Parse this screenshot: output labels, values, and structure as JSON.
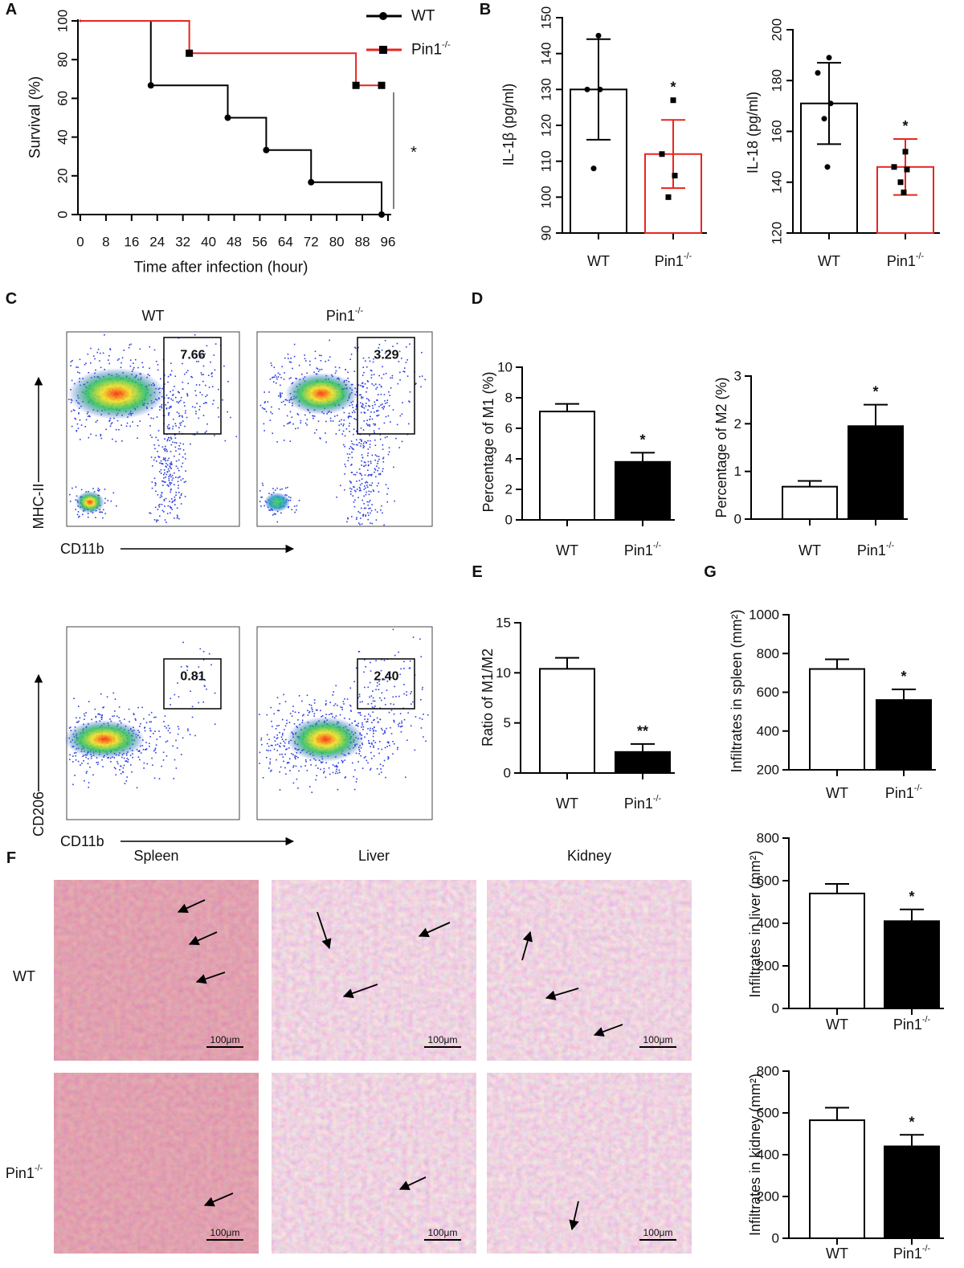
{
  "panel_labels": [
    "A",
    "B",
    "C",
    "D",
    "E",
    "F",
    "G"
  ],
  "chart_data": [
    {
      "type": "line",
      "xlabel": "Time after infection (hour)",
      "ylabel": "Survival (%)",
      "xlim": [
        0,
        96
      ],
      "xticks": [
        0,
        8,
        16,
        24,
        32,
        40,
        48,
        56,
        64,
        72,
        80,
        88,
        96
      ],
      "ylim": [
        0,
        100
      ],
      "yticks": [
        0,
        20,
        40,
        60,
        80,
        100
      ],
      "grid": false,
      "legend": "upper right",
      "series": [
        {
          "name": "WT",
          "color": "#000000",
          "marker": "circle",
          "x": [
            0,
            22,
            46,
            58,
            72,
            94
          ],
          "values": [
            100,
            66.7,
            50,
            33.3,
            16.7,
            0
          ]
        },
        {
          "name": "Pin1-/-",
          "color": "#e8251f",
          "marker": "square",
          "x": [
            0,
            34,
            86,
            94
          ],
          "values": [
            100,
            83.3,
            66.7,
            66.7
          ]
        }
      ],
      "significance": "*"
    },
    {
      "type": "bar",
      "ylabel": "IL-1β (pg/ml)",
      "categories": [
        "WT",
        "Pin1-/-"
      ],
      "values": [
        130,
        112
      ],
      "errors": [
        14,
        9.5
      ],
      "error_direction": "both",
      "fill": [
        "#ffffff",
        "#ffffff"
      ],
      "stroke": [
        "#000000",
        "#e8251f"
      ],
      "points": [
        [
          145,
          130,
          130,
          108
        ],
        [
          127,
          112,
          106,
          100
        ]
      ],
      "point_markers": [
        "circle",
        "square"
      ],
      "ylim": [
        90,
        150
      ],
      "yticks": [
        90,
        100,
        110,
        120,
        130,
        140,
        150
      ],
      "significance": "*"
    },
    {
      "type": "bar",
      "ylabel": "IL-18 (pg/ml)",
      "categories": [
        "WT",
        "Pin1-/-"
      ],
      "values": [
        171,
        146
      ],
      "errors": [
        16,
        11
      ],
      "error_direction": "both",
      "fill": [
        "#ffffff",
        "#ffffff"
      ],
      "stroke": [
        "#000000",
        "#e8251f"
      ],
      "points": [
        [
          189,
          183,
          171,
          165,
          146
        ],
        [
          152,
          146,
          145,
          140,
          136
        ]
      ],
      "point_markers": [
        "circle",
        "square"
      ],
      "ylim": [
        120,
        200
      ],
      "yticks": [
        120,
        140,
        160,
        180,
        200
      ],
      "significance": "*"
    },
    {
      "type": "bar",
      "ylabel": "Percentage of M1 (%)",
      "categories": [
        "WT",
        "Pin1-/-"
      ],
      "values": [
        7.1,
        3.8
      ],
      "errors": [
        0.5,
        0.6
      ],
      "error_direction": "up",
      "fill": [
        "#ffffff",
        "#000000"
      ],
      "stroke": [
        "#000000",
        "#000000"
      ],
      "ylim": [
        0,
        10
      ],
      "yticks": [
        0,
        2,
        4,
        6,
        8,
        10
      ],
      "significance": "*"
    },
    {
      "type": "bar",
      "ylabel": "Percentage of M2 (%)",
      "categories": [
        "WT",
        "Pin1-/-"
      ],
      "values": [
        0.68,
        1.95
      ],
      "errors": [
        0.12,
        0.45
      ],
      "error_direction": "up",
      "fill": [
        "#ffffff",
        "#000000"
      ],
      "stroke": [
        "#000000",
        "#000000"
      ],
      "ylim": [
        0,
        3
      ],
      "yticks": [
        0,
        1,
        2,
        3
      ],
      "significance": "*"
    },
    {
      "type": "bar",
      "ylabel": "Ratio of M1/M2",
      "categories": [
        "WT",
        "Pin1-/-"
      ],
      "values": [
        10.4,
        2.1
      ],
      "errors": [
        1.1,
        0.8
      ],
      "error_direction": "up",
      "fill": [
        "#ffffff",
        "#000000"
      ],
      "stroke": [
        "#000000",
        "#000000"
      ],
      "ylim": [
        0,
        15
      ],
      "yticks": [
        0,
        5,
        10,
        15
      ],
      "significance": "**"
    },
    {
      "type": "bar",
      "ylabel": "Infiltrates in spleen (mm²)",
      "categories": [
        "WT",
        "Pin1-/-"
      ],
      "values": [
        720,
        560
      ],
      "errors": [
        50,
        55
      ],
      "error_direction": "up",
      "fill": [
        "#ffffff",
        "#000000"
      ],
      "stroke": [
        "#000000",
        "#000000"
      ],
      "ylim": [
        200,
        1000
      ],
      "yticks": [
        200,
        400,
        600,
        800,
        1000
      ],
      "significance": "*"
    },
    {
      "type": "bar",
      "ylabel": "Infiltrates in liver (mm²)",
      "categories": [
        "WT",
        "Pin1-/-"
      ],
      "values": [
        540,
        410
      ],
      "errors": [
        45,
        55
      ],
      "error_direction": "up",
      "fill": [
        "#ffffff",
        "#000000"
      ],
      "stroke": [
        "#000000",
        "#000000"
      ],
      "ylim": [
        0,
        800
      ],
      "yticks": [
        0,
        200,
        400,
        600,
        800
      ],
      "significance": "*"
    },
    {
      "type": "bar",
      "ylabel": "Infiltrates in kidney (mm²)",
      "categories": [
        "WT",
        "Pin1-/-"
      ],
      "values": [
        565,
        440
      ],
      "errors": [
        60,
        55
      ],
      "error_direction": "up",
      "fill": [
        "#ffffff",
        "#000000"
      ],
      "stroke": [
        "#000000",
        "#000000"
      ],
      "ylim": [
        0,
        800
      ],
      "yticks": [
        0,
        200,
        400,
        600,
        800
      ],
      "significance": "*"
    }
  ],
  "flow": {
    "columns": [
      "WT",
      "Pin1-/-"
    ],
    "rows": [
      {
        "ylabel": "MHC-II",
        "xlabel": "CD11b",
        "gates": [
          "7.66",
          "3.29"
        ]
      },
      {
        "ylabel": "CD206",
        "xlabel": "CD11b",
        "gates": [
          "0.81",
          "2.40"
        ]
      }
    ]
  },
  "histology": {
    "columns": [
      "Spleen",
      "Liver",
      "Kidney"
    ],
    "rows": [
      "WT",
      "Pin1-/-"
    ],
    "scale_bar": "100μm"
  }
}
